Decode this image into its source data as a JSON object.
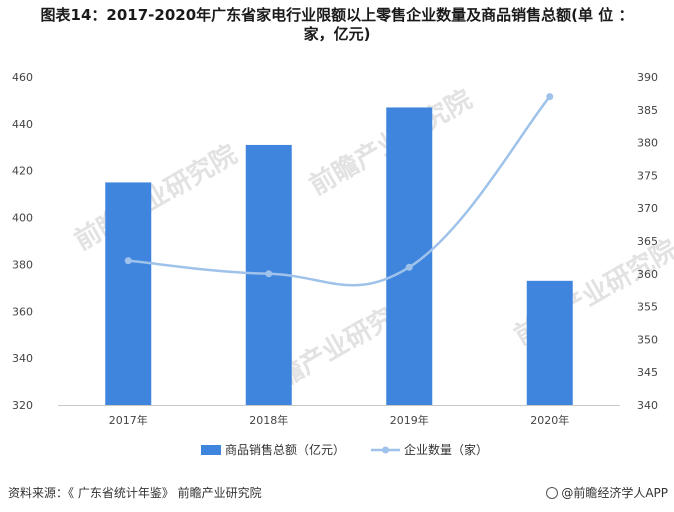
{
  "title_line1": "图表14：2017-2020年广东省家电行业限额以上零售企业数量及商品销售总额(单 位 ：",
  "title_line2": "家，亿元)",
  "source_text": "资料来源：《 广东省统计年鉴》 前瞻产业研究院",
  "brand_text": "@前瞻经济学人APP",
  "watermark_text": "前瞻产业研究院",
  "colors": {
    "bar": "#3f85de",
    "line": "#9fc2ea",
    "axis": "#c8c8c8"
  },
  "chart_data": {
    "type": "bar+line",
    "categories": [
      "2017年",
      "2018年",
      "2019年",
      "2020年"
    ],
    "series": [
      {
        "name": "商品销售总额（亿元）",
        "type": "bar",
        "axis": "left",
        "values": [
          415,
          431,
          447,
          373
        ]
      },
      {
        "name": "企业数量（家）",
        "type": "line",
        "axis": "right",
        "values": [
          362,
          360,
          361,
          387
        ]
      }
    ],
    "y_left": {
      "ylim": [
        320,
        460
      ],
      "ticks": [
        "460",
        "440",
        "420",
        "400",
        "380",
        "360",
        "340",
        "320"
      ]
    },
    "y_right": {
      "ylim": [
        340,
        390
      ],
      "ticks": [
        "390",
        "385",
        "380",
        "375",
        "370",
        "365",
        "360",
        "355",
        "350",
        "345",
        "340"
      ]
    },
    "legend_position": "bottom",
    "grid": false
  }
}
